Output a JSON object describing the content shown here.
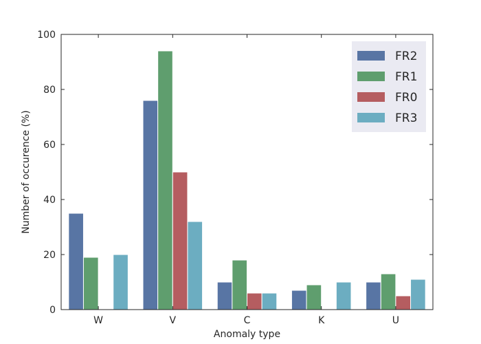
{
  "chart_data": {
    "type": "bar",
    "title": "",
    "xlabel": "Anomaly type",
    "ylabel": "Number of  occurence (%)",
    "categories": [
      "W",
      "V",
      "C",
      "K",
      "U"
    ],
    "series": [
      {
        "name": "FR2",
        "color": "#5875a4",
        "values": [
          35,
          76,
          10,
          7,
          10
        ]
      },
      {
        "name": "FR1",
        "color": "#5f9e6e",
        "values": [
          19,
          94,
          18,
          9,
          13
        ]
      },
      {
        "name": "FR0",
        "color": "#b55d60",
        "values": [
          0,
          50,
          6,
          0,
          5
        ]
      },
      {
        "name": "FR3",
        "color": "#6cadc1",
        "values": [
          20,
          32,
          6,
          10,
          11
        ]
      }
    ],
    "ylim": [
      0,
      100
    ],
    "yticks": [
      0,
      20,
      40,
      60,
      80,
      100
    ],
    "grid": false,
    "legend_position": "top-right"
  }
}
